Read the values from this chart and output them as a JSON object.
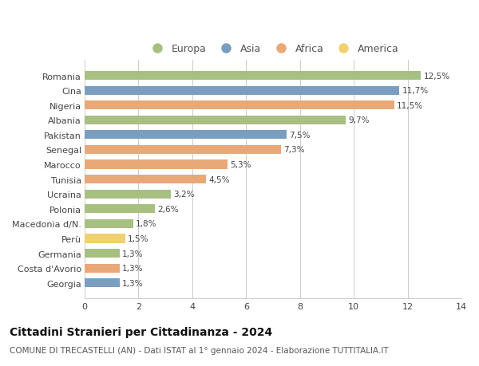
{
  "countries": [
    "Romania",
    "Cina",
    "Nigeria",
    "Albania",
    "Pakistan",
    "Senegal",
    "Marocco",
    "Tunisia",
    "Ucraina",
    "Polonia",
    "Macedonia d/N.",
    "Perù",
    "Germania",
    "Costa d'Avorio",
    "Georgia"
  ],
  "values": [
    12.5,
    11.7,
    11.5,
    9.7,
    7.5,
    7.3,
    5.3,
    4.5,
    3.2,
    2.6,
    1.8,
    1.5,
    1.3,
    1.3,
    1.3
  ],
  "labels": [
    "12,5%",
    "11,7%",
    "11,5%",
    "9,7%",
    "7,5%",
    "7,3%",
    "5,3%",
    "4,5%",
    "3,2%",
    "2,6%",
    "1,8%",
    "1,5%",
    "1,3%",
    "1,3%",
    "1,3%"
  ],
  "regions": [
    "Europa",
    "Asia",
    "Africa",
    "Europa",
    "Asia",
    "Africa",
    "Africa",
    "Africa",
    "Europa",
    "Europa",
    "Europa",
    "America",
    "Europa",
    "Africa",
    "Asia"
  ],
  "region_colors": {
    "Europa": "#a8bf82",
    "Asia": "#7a9ec0",
    "Africa": "#e8a878",
    "America": "#f0d070"
  },
  "legend_order": [
    "Europa",
    "Asia",
    "Africa",
    "America"
  ],
  "xlim": [
    0,
    14
  ],
  "xticks": [
    0,
    2,
    4,
    6,
    8,
    10,
    12,
    14
  ],
  "title": "Cittadini Stranieri per Cittadinanza - 2024",
  "subtitle": "COMUNE DI TRECASTELLI (AN) - Dati ISTAT al 1° gennaio 2024 - Elaborazione TUTTITALIA.IT",
  "title_fontsize": 10,
  "subtitle_fontsize": 7.5,
  "background_color": "#ffffff",
  "grid_color": "#cccccc",
  "bar_height": 0.6
}
